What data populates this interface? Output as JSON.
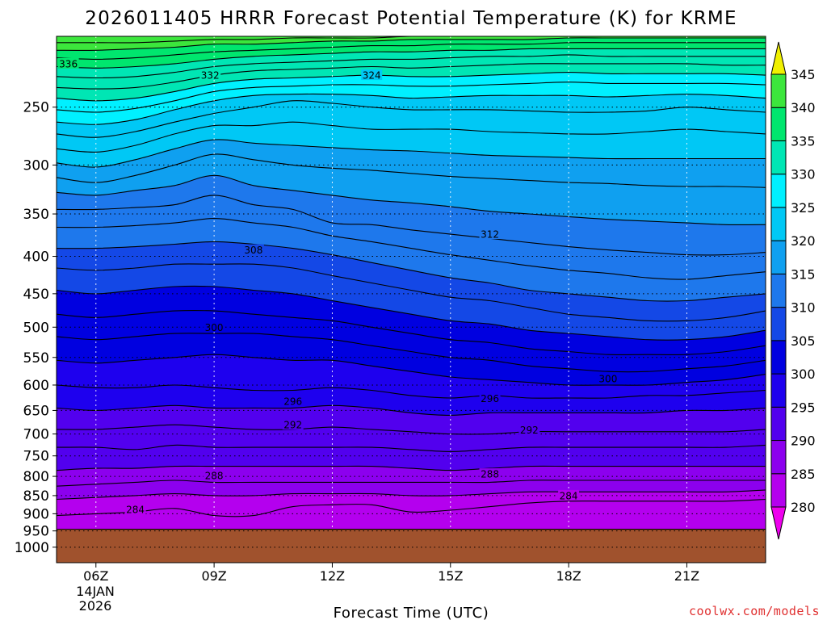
{
  "chart_data": {
    "type": "time-height contour",
    "title": "2026011405 HRRR Forecast Potential Temperature (K) for KRME",
    "xlabel": "Forecast Time (UTC)",
    "ylabel": "",
    "credit": "coolwx.com/models",
    "x_ticks": [
      "06Z",
      "09Z",
      "12Z",
      "15Z",
      "18Z",
      "21Z"
    ],
    "x_tick_hours": [
      6,
      9,
      12,
      15,
      18,
      21
    ],
    "x_date_line1": "14JAN",
    "x_date_line2": "2026",
    "xlim_hours": [
      5,
      23
    ],
    "y_scale": "log",
    "y_ticks": [
      250,
      300,
      350,
      400,
      450,
      500,
      550,
      600,
      650,
      700,
      750,
      800,
      850,
      900,
      950,
      1000
    ],
    "ylim_hpa": [
      1050,
      200
    ],
    "surface_pressure_hpa": 945,
    "grid": "dotted",
    "colorbar": {
      "levels": [
        280,
        285,
        290,
        295,
        300,
        305,
        310,
        315,
        320,
        325,
        330,
        335,
        340,
        345
      ],
      "colors": [
        "#ee00ee",
        "#b400ee",
        "#8c00ee",
        "#5200ee",
        "#1e00ee",
        "#0000e0",
        "#1448e6",
        "#1e78ec",
        "#0fa0f0",
        "#00c8f5",
        "#00f0ff",
        "#00e6b4",
        "#00e66e",
        "#3ce63c",
        "#b4f000",
        "#f0f000"
      ]
    },
    "surface_color": "#a0522d",
    "isentropes_hpa": {
      "hours": [
        5,
        6,
        7,
        8,
        9,
        10,
        11,
        12,
        13,
        14,
        15,
        16,
        17,
        18,
        19,
        20,
        21,
        22,
        23
      ],
      "levels": {
        "280": [
          1000,
          1000,
          1000,
          1000,
          1000,
          1000,
          1000,
          1000,
          1000,
          1000,
          1000,
          1000,
          1000,
          1000,
          1000,
          1000,
          1000,
          1000,
          1000
        ],
        "282": [
          948,
          945,
          945,
          945,
          945,
          945,
          945,
          945,
          945,
          945,
          945,
          945,
          945,
          945,
          945,
          945,
          945,
          945,
          945
        ],
        "284": [
          905,
          900,
          895,
          885,
          905,
          905,
          880,
          875,
          875,
          895,
          890,
          880,
          870,
          865,
          865,
          865,
          865,
          865,
          860
        ],
        "286": [
          860,
          855,
          850,
          845,
          850,
          850,
          845,
          845,
          845,
          850,
          850,
          845,
          840,
          840,
          840,
          840,
          840,
          840,
          835
        ],
        "288": [
          825,
          820,
          815,
          810,
          815,
          815,
          815,
          815,
          815,
          815,
          815,
          815,
          810,
          810,
          810,
          810,
          810,
          810,
          810
        ],
        "290": [
          785,
          780,
          780,
          775,
          775,
          775,
          775,
          775,
          775,
          780,
          785,
          780,
          775,
          775,
          775,
          775,
          775,
          775,
          775
        ],
        "292": [
          730,
          730,
          735,
          725,
          730,
          730,
          730,
          730,
          730,
          735,
          740,
          735,
          730,
          730,
          730,
          730,
          730,
          730,
          725
        ],
        "294": [
          690,
          690,
          685,
          680,
          685,
          690,
          690,
          685,
          690,
          695,
          700,
          700,
          695,
          695,
          695,
          695,
          695,
          695,
          690
        ],
        "296": [
          645,
          650,
          645,
          640,
          645,
          645,
          645,
          640,
          645,
          655,
          660,
          655,
          655,
          655,
          655,
          655,
          650,
          650,
          645
        ],
        "298": [
          600,
          605,
          605,
          600,
          605,
          610,
          610,
          605,
          610,
          620,
          625,
          620,
          625,
          625,
          625,
          620,
          620,
          615,
          610
        ],
        "300": [
          555,
          560,
          555,
          550,
          545,
          550,
          555,
          555,
          565,
          575,
          585,
          590,
          595,
          600,
          600,
          600,
          595,
          590,
          580
        ],
        "302": [
          515,
          520,
          515,
          510,
          510,
          510,
          515,
          520,
          530,
          540,
          550,
          555,
          565,
          570,
          575,
          575,
          570,
          565,
          555
        ],
        "304": [
          480,
          485,
          480,
          475,
          475,
          480,
          485,
          490,
          500,
          510,
          520,
          525,
          535,
          540,
          545,
          545,
          545,
          540,
          530
        ],
        "306": [
          445,
          450,
          445,
          440,
          440,
          445,
          450,
          460,
          470,
          480,
          490,
          495,
          505,
          510,
          515,
          520,
          520,
          515,
          505
        ],
        "308": [
          415,
          418,
          415,
          410,
          410,
          410,
          415,
          425,
          435,
          445,
          455,
          460,
          470,
          480,
          485,
          490,
          490,
          485,
          475
        ],
        "310": [
          390,
          390,
          388,
          385,
          382,
          385,
          390,
          398,
          408,
          418,
          428,
          435,
          445,
          450,
          455,
          460,
          460,
          455,
          450
        ],
        "312": [
          365,
          365,
          363,
          360,
          355,
          360,
          365,
          375,
          382,
          390,
          398,
          405,
          412,
          418,
          422,
          428,
          430,
          425,
          420
        ],
        "314": [
          345,
          345,
          343,
          340,
          330,
          340,
          345,
          360,
          362,
          368,
          373,
          378,
          383,
          388,
          392,
          395,
          398,
          398,
          395
        ],
        "316": [
          327,
          330,
          325,
          320,
          310,
          320,
          325,
          330,
          335,
          338,
          342,
          347,
          350,
          353,
          356,
          358,
          360,
          362,
          362
        ],
        "318": [
          312,
          317,
          310,
          300,
          290,
          295,
          300,
          303,
          305,
          308,
          311,
          313,
          315,
          317,
          318,
          320,
          321,
          321,
          322
        ],
        "320": [
          298,
          302,
          295,
          285,
          277,
          280,
          282,
          284,
          286,
          287,
          289,
          291,
          292,
          293,
          294,
          294,
          294,
          294,
          294
        ],
        "322": [
          285,
          288,
          282,
          272,
          265,
          265,
          262,
          265,
          268,
          268,
          268,
          270,
          271,
          272,
          272,
          270,
          268,
          270,
          272
        ],
        "324": [
          272,
          275,
          270,
          262,
          255,
          250,
          245,
          247,
          250,
          252,
          252,
          252,
          253,
          254,
          254,
          253,
          250,
          252,
          254
        ],
        "326": [
          262,
          264,
          260,
          252,
          245,
          241,
          240,
          240,
          241,
          243,
          242,
          241,
          241,
          241,
          242,
          241,
          240,
          241,
          243
        ],
        "328": [
          252,
          254,
          251,
          245,
          238,
          235,
          234,
          233,
          233,
          234,
          234,
          233,
          232,
          231,
          232,
          232,
          232,
          232,
          233
        ],
        "330": [
          243,
          245,
          243,
          238,
          232,
          229,
          228,
          227,
          226,
          227,
          227,
          226,
          225,
          224,
          225,
          225,
          225,
          225,
          226
        ],
        "332": [
          235,
          236,
          235,
          231,
          226,
          223,
          222,
          221,
          220,
          221,
          220,
          219,
          218,
          218,
          218,
          218,
          218,
          219,
          219
        ],
        "334": [
          227,
          228,
          227,
          224,
          220,
          218,
          217,
          216,
          215,
          215,
          214,
          213,
          213,
          212,
          213,
          213,
          213,
          213,
          213
        ],
        "336": [
          220,
          221,
          220,
          218,
          215,
          213,
          212,
          211,
          210,
          210,
          209,
          209,
          208,
          208,
          208,
          208,
          208,
          208,
          208
        ],
        "338": [
          214,
          215,
          214,
          212,
          210,
          209,
          208,
          207,
          206,
          206,
          205,
          205,
          205,
          204,
          204,
          204,
          204,
          204,
          204
        ],
        "340": [
          209,
          209,
          208,
          207,
          205,
          205,
          204,
          203,
          203,
          202,
          202,
          202,
          202,
          201,
          201,
          201,
          201,
          201,
          201
        ],
        "342": [
          204,
          204,
          204,
          203,
          202,
          202,
          201,
          201,
          201,
          200,
          200,
          200,
          200,
          200,
          200,
          200,
          200,
          200,
          200
        ]
      }
    },
    "contour_labels": [
      {
        "text": "336",
        "hour": 5.3,
        "hpa": 218
      },
      {
        "text": "332",
        "hour": 8.9,
        "hpa": 226
      },
      {
        "text": "324",
        "hour": 13.0,
        "hpa": 226
      },
      {
        "text": "308",
        "hour": 10.0,
        "hpa": 392
      },
      {
        "text": "312",
        "hour": 16.0,
        "hpa": 373
      },
      {
        "text": "300",
        "hour": 9.0,
        "hpa": 500
      },
      {
        "text": "300",
        "hour": 19.0,
        "hpa": 588
      },
      {
        "text": "296",
        "hour": 11.0,
        "hpa": 631
      },
      {
        "text": "296",
        "hour": 16.0,
        "hpa": 626
      },
      {
        "text": "292",
        "hour": 11.0,
        "hpa": 680
      },
      {
        "text": "292",
        "hour": 17.0,
        "hpa": 691
      },
      {
        "text": "288",
        "hour": 9.0,
        "hpa": 798
      },
      {
        "text": "288",
        "hour": 16.0,
        "hpa": 794
      },
      {
        "text": "284",
        "hour": 7.0,
        "hpa": 888
      },
      {
        "text": "284",
        "hour": 18.0,
        "hpa": 850
      }
    ]
  }
}
